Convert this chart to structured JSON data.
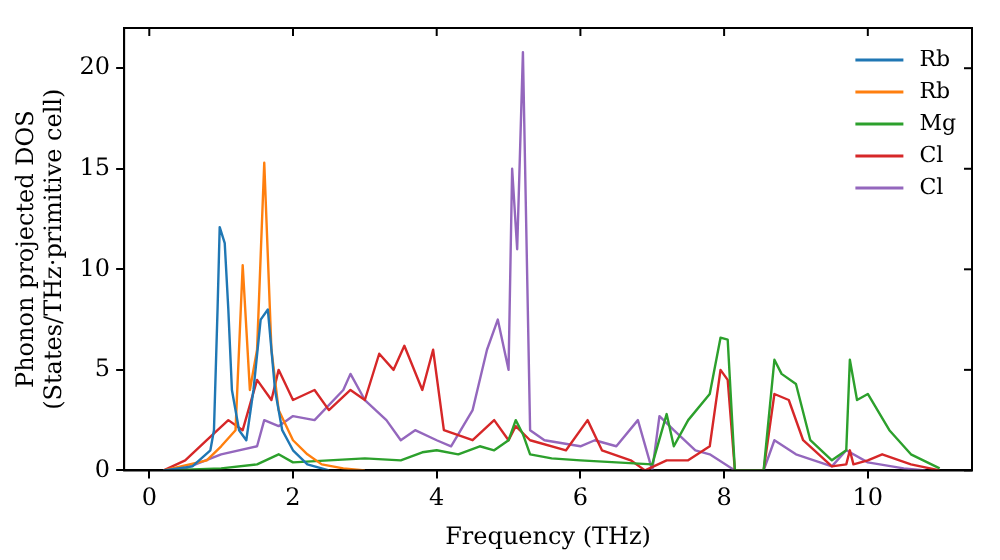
{
  "chart_data": {
    "type": "line",
    "xlabel": "Frequency (THz)",
    "ylabel": "Phonon projected DOS\n(States/THz·primitive cell)",
    "xlim": [
      -0.35,
      11.45
    ],
    "ylim": [
      0,
      22
    ],
    "xticks": [
      0,
      2,
      4,
      6,
      8,
      10
    ],
    "yticks": [
      0,
      5,
      10,
      15,
      20
    ],
    "grid": false,
    "legend": "top right",
    "marker": "none",
    "line_style": "solid",
    "series": [
      {
        "name": "Rb",
        "color": "#1f77b4",
        "x": [
          0.2,
          0.6,
          0.85,
          0.9,
          0.95,
          0.98,
          1.05,
          1.1,
          1.15,
          1.25,
          1.35,
          1.45,
          1.55,
          1.65,
          1.75,
          1.85,
          2.0,
          2.2,
          2.5
        ],
        "values": [
          0,
          0.2,
          1,
          2,
          8,
          12.1,
          11.3,
          8,
          4,
          2,
          1.5,
          4,
          7.5,
          8,
          4,
          2,
          1,
          0.3,
          0
        ]
      },
      {
        "name": "Rb",
        "color": "#ff7f0e",
        "x": [
          0.2,
          0.8,
          1.0,
          1.2,
          1.3,
          1.4,
          1.5,
          1.6,
          1.7,
          1.8,
          2.0,
          2.2,
          2.4,
          2.7,
          3.0
        ],
        "values": [
          0,
          0.5,
          1.2,
          2,
          10.2,
          4,
          6,
          15.3,
          6,
          3,
          1.5,
          0.8,
          0.3,
          0.1,
          0
        ]
      },
      {
        "name": "Mg",
        "color": "#2ca02c",
        "x": [
          0.2,
          1.0,
          1.5,
          1.8,
          2.0,
          2.5,
          3.0,
          3.5,
          3.8,
          4.0,
          4.3,
          4.6,
          4.8,
          5.0,
          5.1,
          5.2,
          5.3,
          5.6,
          6.0,
          6.5,
          7.0,
          7.2,
          7.3,
          7.5,
          7.8,
          7.95,
          8.05,
          8.15,
          8.55,
          8.7,
          8.8,
          9.0,
          9.2,
          9.5,
          9.7,
          9.75,
          9.85,
          10.0,
          10.3,
          10.6,
          11.0
        ],
        "values": [
          0,
          0.1,
          0.3,
          0.8,
          0.4,
          0.5,
          0.6,
          0.5,
          0.9,
          1.0,
          0.8,
          1.2,
          1.0,
          1.5,
          2.5,
          1.8,
          0.8,
          0.6,
          0.5,
          0.4,
          0.3,
          2.8,
          1.2,
          2.5,
          3.8,
          6.6,
          6.5,
          0,
          0,
          5.5,
          4.8,
          4.3,
          1.5,
          0.5,
          1,
          5.5,
          3.5,
          3.8,
          2,
          0.8,
          0.1
        ]
      },
      {
        "name": "Cl",
        "color": "#d62728",
        "x": [
          0.2,
          0.5,
          0.8,
          1.1,
          1.3,
          1.5,
          1.7,
          1.8,
          2.0,
          2.3,
          2.5,
          2.8,
          3.0,
          3.2,
          3.4,
          3.55,
          3.8,
          3.95,
          4.1,
          4.5,
          4.8,
          5.0,
          5.1,
          5.3,
          5.8,
          6.1,
          6.3,
          6.7,
          6.9,
          7.2,
          7.5,
          7.8,
          7.95,
          8.05,
          8.15,
          8.55,
          8.7,
          8.9,
          9.1,
          9.5,
          9.7,
          9.75,
          9.8,
          10.0,
          10.2,
          10.6,
          11.0
        ],
        "values": [
          0,
          0.5,
          1.5,
          2.5,
          2,
          4.5,
          3.5,
          5,
          3.5,
          4,
          3,
          4,
          3.5,
          5.8,
          5,
          6.2,
          4,
          6,
          2,
          1.5,
          2.5,
          1.5,
          2.2,
          1.5,
          1,
          2.5,
          1,
          0.5,
          0,
          0.5,
          0.5,
          1.2,
          5,
          4.5,
          0,
          0,
          3.8,
          3.5,
          1.5,
          0.2,
          0.3,
          1,
          0.3,
          0.5,
          0.8,
          0.3,
          0
        ]
      },
      {
        "name": "Cl",
        "color": "#9467bd",
        "x": [
          0.2,
          0.5,
          1.0,
          1.5,
          1.6,
          1.8,
          2.0,
          2.3,
          2.7,
          2.8,
          3.0,
          3.3,
          3.5,
          3.7,
          4.0,
          4.2,
          4.5,
          4.7,
          4.85,
          5.0,
          5.05,
          5.12,
          5.2,
          5.3,
          5.5,
          6.0,
          6.2,
          6.5,
          6.8,
          7.0,
          7.1,
          7.3,
          7.6,
          7.8,
          8.15,
          8.55,
          8.7,
          9.0,
          9.5,
          9.7,
          10.0,
          10.5,
          10.8
        ],
        "values": [
          0,
          0.1,
          0.8,
          1.2,
          2.5,
          2.2,
          2.7,
          2.5,
          4,
          4.8,
          3.5,
          2.5,
          1.5,
          2,
          1.5,
          1.2,
          3,
          6,
          7.5,
          5,
          15,
          11,
          20.8,
          2,
          1.5,
          1.2,
          1.5,
          1.2,
          2.5,
          0,
          2.7,
          2,
          1,
          0.8,
          0,
          0,
          1.5,
          0.8,
          0.2,
          1,
          0.4,
          0.1,
          0
        ]
      }
    ]
  }
}
